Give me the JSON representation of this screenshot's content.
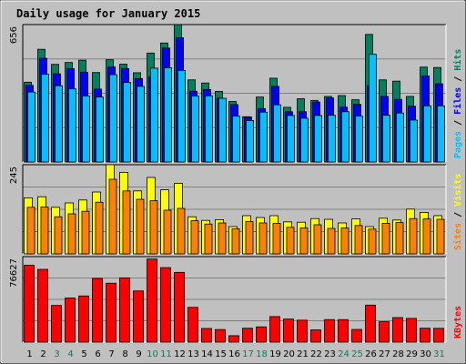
{
  "title": "Daily usage for January 2015",
  "colors": {
    "hits": "#00805c",
    "files": "#0000ff",
    "pages": "#00c0ff",
    "visits": "#ffff00",
    "sites": "#ff8000",
    "kbytes": "#ff0000",
    "weekend_day": "#00805c",
    "weekday": "#000000",
    "title": "#0000ff"
  },
  "chart_data": [
    {
      "type": "bar",
      "max_label": "656",
      "legend": [
        "Pages",
        "Files",
        "Hits"
      ],
      "categories": [
        "1",
        "2",
        "3",
        "4",
        "5",
        "6",
        "7",
        "8",
        "9",
        "10",
        "11",
        "12",
        "13",
        "14",
        "15",
        "16",
        "17",
        "18",
        "19",
        "20",
        "21",
        "22",
        "23",
        "24",
        "25",
        "26",
        "27",
        "28",
        "29",
        "30",
        "31"
      ],
      "weekend": [
        3,
        4,
        10,
        11,
        17,
        18,
        24,
        25,
        31
      ],
      "ylim": [
        0,
        656
      ],
      "series": [
        {
          "name": "Hits",
          "values": [
            381,
            538,
            466,
            475,
            486,
            427,
            488,
            467,
            426,
            520,
            568,
            656,
            392,
            377,
            337,
            289,
            216,
            310,
            400,
            261,
            302,
            294,
            313,
            317,
            297,
            609,
            392,
            386,
            313,
            453,
            451
          ]
        },
        {
          "name": "Files",
          "values": [
            366,
            495,
            421,
            446,
            429,
            348,
            454,
            446,
            398,
            407,
            544,
            593,
            338,
            346,
            304,
            274,
            215,
            255,
            361,
            240,
            240,
            286,
            306,
            262,
            275,
            364,
            313,
            299,
            266,
            411,
            373
          ]
        },
        {
          "name": "Pages",
          "values": [
            334,
            419,
            364,
            349,
            315,
            310,
            417,
            380,
            361,
            448,
            450,
            437,
            315,
            316,
            304,
            219,
            198,
            238,
            273,
            222,
            209,
            222,
            223,
            240,
            219,
            514,
            223,
            234,
            200,
            268,
            268
          ]
        }
      ]
    },
    {
      "type": "bar",
      "max_label": "245",
      "legend": [
        "Sites",
        "Visits"
      ],
      "categories": [
        "1",
        "2",
        "3",
        "4",
        "5",
        "6",
        "7",
        "8",
        "9",
        "10",
        "11",
        "12",
        "13",
        "14",
        "15",
        "16",
        "17",
        "18",
        "19",
        "20",
        "21",
        "22",
        "23",
        "24",
        "25",
        "26",
        "27",
        "28",
        "29",
        "30",
        "31"
      ],
      "ylim": [
        0,
        245
      ],
      "series": [
        {
          "name": "Visits",
          "values": [
            154,
            157,
            128,
            140,
            148,
            170,
            245,
            224,
            173,
            210,
            176,
            194,
            102,
            92,
            94,
            75,
            105,
            100,
            105,
            88,
            87,
            97,
            95,
            85,
            96,
            75,
            98,
            93,
            123,
            114,
            105
          ]
        },
        {
          "name": "Sites",
          "values": [
            128,
            129,
            102,
            110,
            117,
            142,
            205,
            173,
            150,
            146,
            120,
            125,
            91,
            82,
            85,
            69,
            89,
            85,
            84,
            73,
            71,
            80,
            70,
            71,
            78,
            68,
            84,
            86,
            97,
            96,
            95
          ]
        }
      ]
    },
    {
      "type": "bar",
      "max_label": "76627",
      "legend": [
        "KBytes"
      ],
      "categories": [
        "1",
        "2",
        "3",
        "4",
        "5",
        "6",
        "7",
        "8",
        "9",
        "10",
        "11",
        "12",
        "13",
        "14",
        "15",
        "16",
        "17",
        "18",
        "19",
        "20",
        "21",
        "22",
        "23",
        "24",
        "25",
        "26",
        "27",
        "28",
        "29",
        "30",
        "31"
      ],
      "ylim": [
        0,
        76627
      ],
      "series": [
        {
          "name": "KBytes",
          "values": [
            69000,
            65200,
            32900,
            39600,
            41400,
            57100,
            52800,
            57600,
            45900,
            74500,
            66800,
            62500,
            31200,
            12300,
            11300,
            5800,
            12500,
            13700,
            22900,
            20700,
            19700,
            11000,
            20200,
            20200,
            11400,
            33200,
            18300,
            22000,
            21300,
            12500,
            12400
          ]
        }
      ]
    }
  ]
}
